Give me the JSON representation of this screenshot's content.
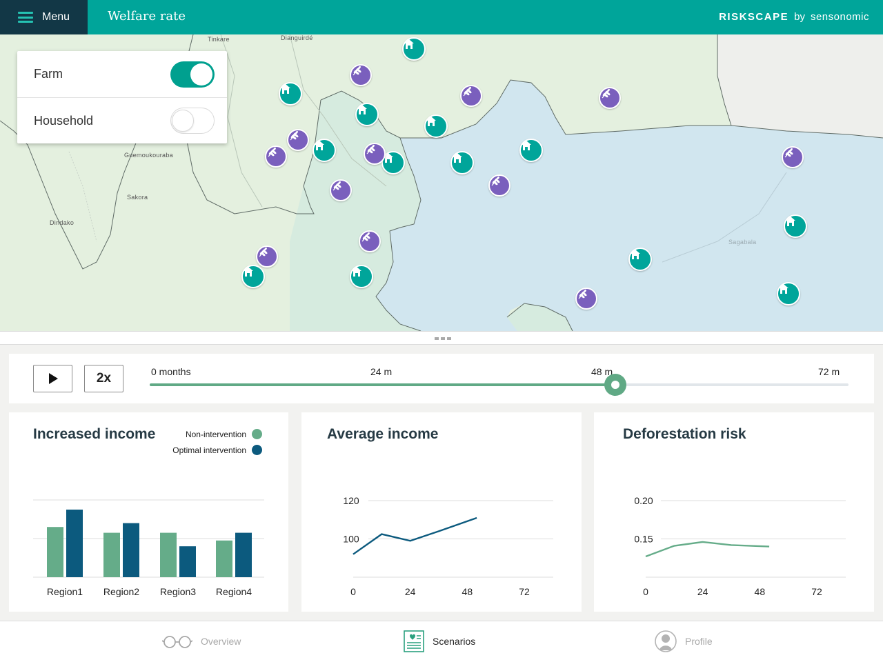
{
  "header": {
    "menu_label": "Menu",
    "title": "Welfare rate",
    "brand_primary": "RISKSCAPE",
    "brand_by": "by",
    "brand_company": "sensonomic",
    "accent_color": "#00a59a",
    "menu_bg_color": "#123746"
  },
  "map": {
    "place_names": [
      "Tinkare",
      "Dianguirdé",
      "Guemoukouraba",
      "Sakora",
      "Dindako",
      "Sagabala"
    ],
    "house_marker_icon": "house-icon",
    "farm_marker_icon": "wheat-icon",
    "house_color": "#00a59a",
    "farm_color": "#7a5fbd"
  },
  "layer_toggles": [
    {
      "label": "Farm",
      "on": true
    },
    {
      "label": "Household",
      "on": false
    }
  ],
  "playback": {
    "speed_label": "2x",
    "ticks": [
      "0 months",
      "24 m",
      "48 m",
      "72 m"
    ],
    "current_month": 48,
    "max_month": 72
  },
  "cards": {
    "increased_income": {
      "title": "Increased income",
      "legend": [
        {
          "name": "Non-intervention",
          "color": "#65ac89"
        },
        {
          "name": "Optimal intervention",
          "color": "#0c5a7e"
        }
      ]
    },
    "average_income": {
      "title": "Average income"
    },
    "deforestation_risk": {
      "title": "Deforestation risk"
    }
  },
  "chart_data": [
    {
      "type": "bar",
      "title": "Increased income",
      "categories": [
        "Region1",
        "Region2",
        "Region3",
        "Region4"
      ],
      "series": [
        {
          "name": "Non-intervention",
          "values": [
            2.6,
            2.3,
            2.3,
            1.9
          ]
        },
        {
          "name": "Optimal intervention",
          "values": [
            3.5,
            2.8,
            1.6,
            2.3
          ]
        }
      ],
      "ylim": [
        0,
        4
      ],
      "grid": true,
      "legend_position": "top-right"
    },
    {
      "type": "line",
      "title": "Average income",
      "x": [
        0,
        12,
        24,
        36,
        52
      ],
      "series": [
        {
          "values": [
            92,
            102.5,
            99,
            104,
            111
          ],
          "color": "#0c5a7e"
        }
      ],
      "xticks": [
        0,
        24,
        48,
        72
      ],
      "yticks": [
        100,
        120
      ],
      "xlim": [
        0,
        72
      ],
      "ylim": [
        80,
        120
      ],
      "grid": true
    },
    {
      "type": "line",
      "title": "Deforestation risk",
      "x": [
        0,
        12,
        24,
        36,
        52
      ],
      "series": [
        {
          "values": [
            0.127,
            0.141,
            0.146,
            0.142,
            0.14
          ],
          "color": "#65ac89"
        }
      ],
      "xticks": [
        0,
        24,
        48,
        72
      ],
      "yticks": [
        0.15,
        0.2
      ],
      "ytick_labels": [
        "0.15",
        "0.20"
      ],
      "xlim": [
        0,
        72
      ],
      "ylim": [
        0.1,
        0.2
      ],
      "grid": true
    }
  ],
  "bottom_nav": [
    {
      "label": "Overview",
      "icon": "glasses-icon",
      "active": false
    },
    {
      "label": "Scenarios",
      "icon": "document-icon",
      "active": true
    },
    {
      "label": "Profile",
      "icon": "user-icon",
      "active": false
    }
  ]
}
